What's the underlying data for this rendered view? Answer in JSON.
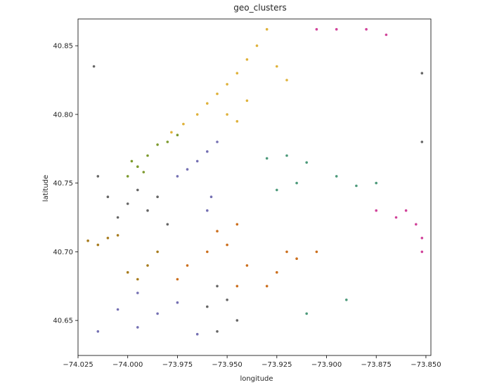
{
  "chart_data": {
    "type": "scatter",
    "title": "geo_clusters",
    "xlabel": "longitude",
    "ylabel": "latitude",
    "xlim": [
      -74.025,
      -73.8475
    ],
    "ylim": [
      40.6245,
      40.8695
    ],
    "xticks": [
      -74.025,
      -74.0,
      -73.975,
      -73.95,
      -73.925,
      -73.9,
      -73.875,
      -73.85
    ],
    "xtick_labels": [
      "−74.025",
      "−74.000",
      "−73.975",
      "−73.950",
      "−73.925",
      "−73.900",
      "−73.875",
      "−73.850"
    ],
    "yticks": [
      40.65,
      40.7,
      40.75,
      40.8,
      40.85
    ],
    "ytick_labels": [
      "40.65",
      "40.70",
      "40.75",
      "40.80",
      "40.85"
    ],
    "grid": false,
    "legend": "none",
    "series": [
      {
        "color": "#dfb23b",
        "points": [
          [
            -73.93,
            40.862
          ],
          [
            -73.935,
            40.85
          ],
          [
            -73.94,
            40.84
          ],
          [
            -73.945,
            40.83
          ],
          [
            -73.95,
            40.822
          ],
          [
            -73.955,
            40.815
          ],
          [
            -73.96,
            40.808
          ],
          [
            -73.965,
            40.8
          ],
          [
            -73.972,
            40.793
          ],
          [
            -73.978,
            40.787
          ],
          [
            -73.95,
            40.8
          ],
          [
            -73.945,
            40.795
          ],
          [
            -73.94,
            40.81
          ],
          [
            -73.925,
            40.835
          ],
          [
            -73.92,
            40.825
          ]
        ]
      },
      {
        "color": "#7d9a2d",
        "points": [
          [
            -73.985,
            40.778
          ],
          [
            -73.99,
            40.77
          ],
          [
            -73.995,
            40.762
          ],
          [
            -74.0,
            40.755
          ],
          [
            -73.98,
            40.78
          ],
          [
            -73.975,
            40.785
          ],
          [
            -73.992,
            40.758
          ],
          [
            -73.998,
            40.766
          ]
        ]
      },
      {
        "color": "#7570b3",
        "points": [
          [
            -73.955,
            40.78
          ],
          [
            -73.96,
            40.773
          ],
          [
            -73.965,
            40.766
          ],
          [
            -73.97,
            40.76
          ],
          [
            -73.975,
            40.755
          ],
          [
            -73.958,
            40.74
          ],
          [
            -73.96,
            40.73
          ],
          [
            -74.015,
            40.642
          ],
          [
            -73.995,
            40.645
          ],
          [
            -73.985,
            40.655
          ],
          [
            -73.975,
            40.663
          ],
          [
            -73.995,
            40.67
          ],
          [
            -73.965,
            40.64
          ],
          [
            -74.005,
            40.658
          ]
        ]
      },
      {
        "color": "#666666",
        "points": [
          [
            -74.01,
            40.74
          ],
          [
            -74.0,
            40.735
          ],
          [
            -73.99,
            40.73
          ],
          [
            -73.985,
            40.74
          ],
          [
            -73.995,
            40.745
          ],
          [
            -74.005,
            40.725
          ],
          [
            -73.98,
            40.72
          ],
          [
            -74.015,
            40.755
          ],
          [
            -73.955,
            40.675
          ],
          [
            -73.95,
            40.665
          ],
          [
            -73.96,
            40.66
          ],
          [
            -73.945,
            40.65
          ],
          [
            -73.955,
            40.642
          ],
          [
            -73.852,
            40.83
          ],
          [
            -73.852,
            40.78
          ],
          [
            -74.017,
            40.835
          ]
        ]
      },
      {
        "color": "#a87c1e",
        "points": [
          [
            -74.01,
            40.71
          ],
          [
            -74.015,
            40.705
          ],
          [
            -74.005,
            40.712
          ],
          [
            -74.02,
            40.708
          ],
          [
            -74.0,
            40.685
          ],
          [
            -73.99,
            40.69
          ],
          [
            -73.985,
            40.7
          ],
          [
            -73.995,
            40.68
          ]
        ]
      },
      {
        "color": "#cc6f1d",
        "points": [
          [
            -73.955,
            40.715
          ],
          [
            -73.945,
            40.72
          ],
          [
            -73.95,
            40.705
          ],
          [
            -73.96,
            40.7
          ],
          [
            -73.97,
            40.69
          ],
          [
            -73.94,
            40.69
          ],
          [
            -73.925,
            40.685
          ],
          [
            -73.915,
            40.695
          ],
          [
            -73.905,
            40.7
          ],
          [
            -73.93,
            40.675
          ],
          [
            -73.975,
            40.68
          ],
          [
            -73.92,
            40.7
          ],
          [
            -73.945,
            40.675
          ]
        ]
      },
      {
        "color": "#4d9a7b",
        "points": [
          [
            -73.93,
            40.768
          ],
          [
            -73.92,
            40.77
          ],
          [
            -73.91,
            40.765
          ],
          [
            -73.925,
            40.745
          ],
          [
            -73.915,
            40.75
          ],
          [
            -73.895,
            40.755
          ],
          [
            -73.885,
            40.748
          ],
          [
            -73.875,
            40.75
          ],
          [
            -73.91,
            40.655
          ],
          [
            -73.89,
            40.665
          ]
        ]
      },
      {
        "color": "#d1439a",
        "points": [
          [
            -73.905,
            40.862
          ],
          [
            -73.895,
            40.862
          ],
          [
            -73.88,
            40.862
          ],
          [
            -73.87,
            40.858
          ],
          [
            -73.86,
            40.73
          ],
          [
            -73.855,
            40.72
          ],
          [
            -73.852,
            40.71
          ],
          [
            -73.865,
            40.725
          ],
          [
            -73.875,
            40.73
          ],
          [
            -73.852,
            40.7
          ]
        ]
      }
    ]
  }
}
